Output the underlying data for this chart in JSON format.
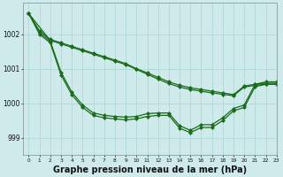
{
  "background_color": "#ceeaea",
  "grid_color": "#b0d8d8",
  "line_color": "#1a6b1a",
  "xlabel": "Graphe pression niveau de la mer (hPa)",
  "xlabel_fontsize": 7.0,
  "ylim": [
    998.5,
    1002.9
  ],
  "xlim": [
    -0.5,
    23
  ],
  "yticks": [
    999,
    1000,
    1001,
    1002
  ],
  "xticks": [
    0,
    1,
    2,
    3,
    4,
    5,
    6,
    7,
    8,
    9,
    10,
    11,
    12,
    13,
    14,
    15,
    16,
    17,
    18,
    19,
    20,
    21,
    22,
    23
  ],
  "line1_x": [
    0,
    1,
    2,
    3,
    4,
    5,
    6,
    7,
    8,
    9,
    10,
    11,
    12,
    13,
    14,
    15,
    16,
    17,
    18,
    19,
    20,
    21,
    22,
    23
  ],
  "line1_y": [
    1002.6,
    1002.1,
    1001.85,
    1001.75,
    1001.65,
    1001.55,
    1001.45,
    1001.35,
    1001.25,
    1001.15,
    1001.0,
    1000.88,
    1000.75,
    1000.62,
    1000.52,
    1000.45,
    1000.4,
    1000.35,
    1000.3,
    1000.25,
    1000.5,
    1000.55,
    1000.58,
    1000.58
  ],
  "line2_x": [
    0,
    2,
    3,
    4,
    5,
    6,
    7,
    8,
    9,
    10,
    11,
    12,
    13,
    14,
    15,
    16,
    17,
    18,
    19,
    20,
    21,
    22,
    23
  ],
  "line2_y": [
    1002.6,
    1001.82,
    1001.72,
    1001.62,
    1001.52,
    1001.42,
    1001.32,
    1001.22,
    1001.12,
    1000.98,
    1000.84,
    1000.7,
    1000.57,
    1000.47,
    1000.4,
    1000.35,
    1000.3,
    1000.26,
    1000.22,
    1000.47,
    1000.52,
    1000.55,
    1000.55
  ],
  "line3_x": [
    0,
    1,
    2,
    3,
    4,
    5,
    6,
    7,
    8,
    9,
    10,
    11,
    12,
    13,
    14,
    15,
    16,
    17,
    18,
    19,
    20,
    21,
    22,
    23
  ],
  "line3_y": [
    1002.6,
    1002.05,
    1001.8,
    1000.9,
    1000.32,
    999.95,
    999.72,
    999.65,
    999.62,
    999.6,
    999.62,
    999.7,
    999.72,
    999.72,
    999.35,
    999.22,
    999.38,
    999.38,
    999.58,
    999.85,
    999.95,
    1000.55,
    1000.62,
    1000.62
  ],
  "line4_x": [
    0,
    1,
    2,
    3,
    4,
    5,
    6,
    7,
    8,
    9,
    10,
    11,
    12,
    13,
    14,
    15,
    16,
    17,
    18,
    19,
    20,
    21,
    22,
    23
  ],
  "line4_y": [
    1002.6,
    1002.0,
    1001.75,
    1000.82,
    1000.25,
    999.88,
    999.65,
    999.58,
    999.55,
    999.52,
    999.55,
    999.62,
    999.65,
    999.65,
    999.28,
    999.15,
    999.3,
    999.3,
    999.5,
    999.78,
    999.88,
    1000.48,
    1000.55,
    1000.55
  ]
}
